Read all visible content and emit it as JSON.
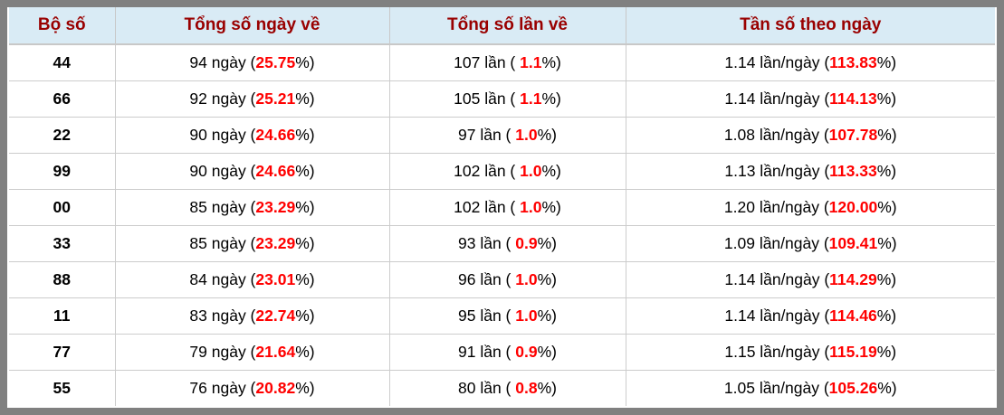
{
  "colors": {
    "frame_gray": "#808080",
    "header_background": "#d9ebf5",
    "header_text": "#990000",
    "highlight_red": "#ff0000",
    "body_text": "#000000",
    "grid_line": "#cccccc"
  },
  "table": {
    "headers": [
      "Bộ số",
      "Tổng số ngày về",
      "Tổng số lần về",
      "Tần số theo ngày"
    ],
    "rows": [
      {
        "pair": "44",
        "days": [
          {
            "t": "94 ngày ("
          },
          {
            "t": "25.75",
            "red": true
          },
          {
            "t": "%)"
          }
        ],
        "times": [
          {
            "t": "107 lần ( "
          },
          {
            "t": "1.1",
            "red": true
          },
          {
            "t": "%)"
          }
        ],
        "freq": [
          {
            "t": "1.14 lần/ngày ("
          },
          {
            "t": "113.83",
            "red": true
          },
          {
            "t": "%)"
          }
        ]
      },
      {
        "pair": "66",
        "days": [
          {
            "t": "92 ngày ("
          },
          {
            "t": "25.21",
            "red": true
          },
          {
            "t": "%)"
          }
        ],
        "times": [
          {
            "t": "105 lần ( "
          },
          {
            "t": "1.1",
            "red": true
          },
          {
            "t": "%)"
          }
        ],
        "freq": [
          {
            "t": "1.14 lần/ngày ("
          },
          {
            "t": "114.13",
            "red": true
          },
          {
            "t": "%)"
          }
        ]
      },
      {
        "pair": "22",
        "days": [
          {
            "t": "90 ngày ("
          },
          {
            "t": "24.66",
            "red": true
          },
          {
            "t": "%)"
          }
        ],
        "times": [
          {
            "t": "97 lần ( "
          },
          {
            "t": "1.0",
            "red": true
          },
          {
            "t": "%)"
          }
        ],
        "freq": [
          {
            "t": "1.08 lần/ngày ("
          },
          {
            "t": "107.78",
            "red": true
          },
          {
            "t": "%)"
          }
        ]
      },
      {
        "pair": "99",
        "days": [
          {
            "t": "90 ngày ("
          },
          {
            "t": "24.66",
            "red": true
          },
          {
            "t": "%)"
          }
        ],
        "times": [
          {
            "t": "102 lần ( "
          },
          {
            "t": "1.0",
            "red": true
          },
          {
            "t": "%)"
          }
        ],
        "freq": [
          {
            "t": "1.13 lần/ngày ("
          },
          {
            "t": "113.33",
            "red": true
          },
          {
            "t": "%)"
          }
        ]
      },
      {
        "pair": "00",
        "days": [
          {
            "t": "85 ngày ("
          },
          {
            "t": "23.29",
            "red": true
          },
          {
            "t": "%)"
          }
        ],
        "times": [
          {
            "t": "102 lần ( "
          },
          {
            "t": "1.0",
            "red": true
          },
          {
            "t": "%)"
          }
        ],
        "freq": [
          {
            "t": "1.20 lần/ngày ("
          },
          {
            "t": "120.00",
            "red": true
          },
          {
            "t": "%)"
          }
        ]
      },
      {
        "pair": "33",
        "days": [
          {
            "t": "85 ngày ("
          },
          {
            "t": "23.29",
            "red": true
          },
          {
            "t": "%)"
          }
        ],
        "times": [
          {
            "t": "93 lần ( "
          },
          {
            "t": "0.9",
            "red": true
          },
          {
            "t": "%)"
          }
        ],
        "freq": [
          {
            "t": "1.09 lần/ngày ("
          },
          {
            "t": "109.41",
            "red": true
          },
          {
            "t": "%)"
          }
        ]
      },
      {
        "pair": "88",
        "days": [
          {
            "t": "84 ngày ("
          },
          {
            "t": "23.01",
            "red": true
          },
          {
            "t": "%)"
          }
        ],
        "times": [
          {
            "t": "96 lần ( "
          },
          {
            "t": "1.0",
            "red": true
          },
          {
            "t": "%)"
          }
        ],
        "freq": [
          {
            "t": "1.14 lần/ngày ("
          },
          {
            "t": "114.29",
            "red": true
          },
          {
            "t": "%)"
          }
        ]
      },
      {
        "pair": "11",
        "days": [
          {
            "t": "83 ngày ("
          },
          {
            "t": "22.74",
            "red": true
          },
          {
            "t": "%)"
          }
        ],
        "times": [
          {
            "t": "95 lần ( "
          },
          {
            "t": "1.0",
            "red": true
          },
          {
            "t": "%)"
          }
        ],
        "freq": [
          {
            "t": "1.14 lần/ngày ("
          },
          {
            "t": "114.46",
            "red": true
          },
          {
            "t": "%)"
          }
        ]
      },
      {
        "pair": "77",
        "days": [
          {
            "t": "79 ngày ("
          },
          {
            "t": "21.64",
            "red": true
          },
          {
            "t": "%)"
          }
        ],
        "times": [
          {
            "t": "91 lần ( "
          },
          {
            "t": "0.9",
            "red": true
          },
          {
            "t": "%)"
          }
        ],
        "freq": [
          {
            "t": "1.15 lần/ngày ("
          },
          {
            "t": "115.19",
            "red": true
          },
          {
            "t": "%)"
          }
        ]
      },
      {
        "pair": "55",
        "days": [
          {
            "t": "76 ngày ("
          },
          {
            "t": "20.82",
            "red": true
          },
          {
            "t": "%)"
          }
        ],
        "times": [
          {
            "t": "80 lần ( "
          },
          {
            "t": "0.8",
            "red": true
          },
          {
            "t": "%)"
          }
        ],
        "freq": [
          {
            "t": "1.05 lần/ngày ("
          },
          {
            "t": "105.26",
            "red": true
          },
          {
            "t": "%)"
          }
        ]
      }
    ]
  }
}
